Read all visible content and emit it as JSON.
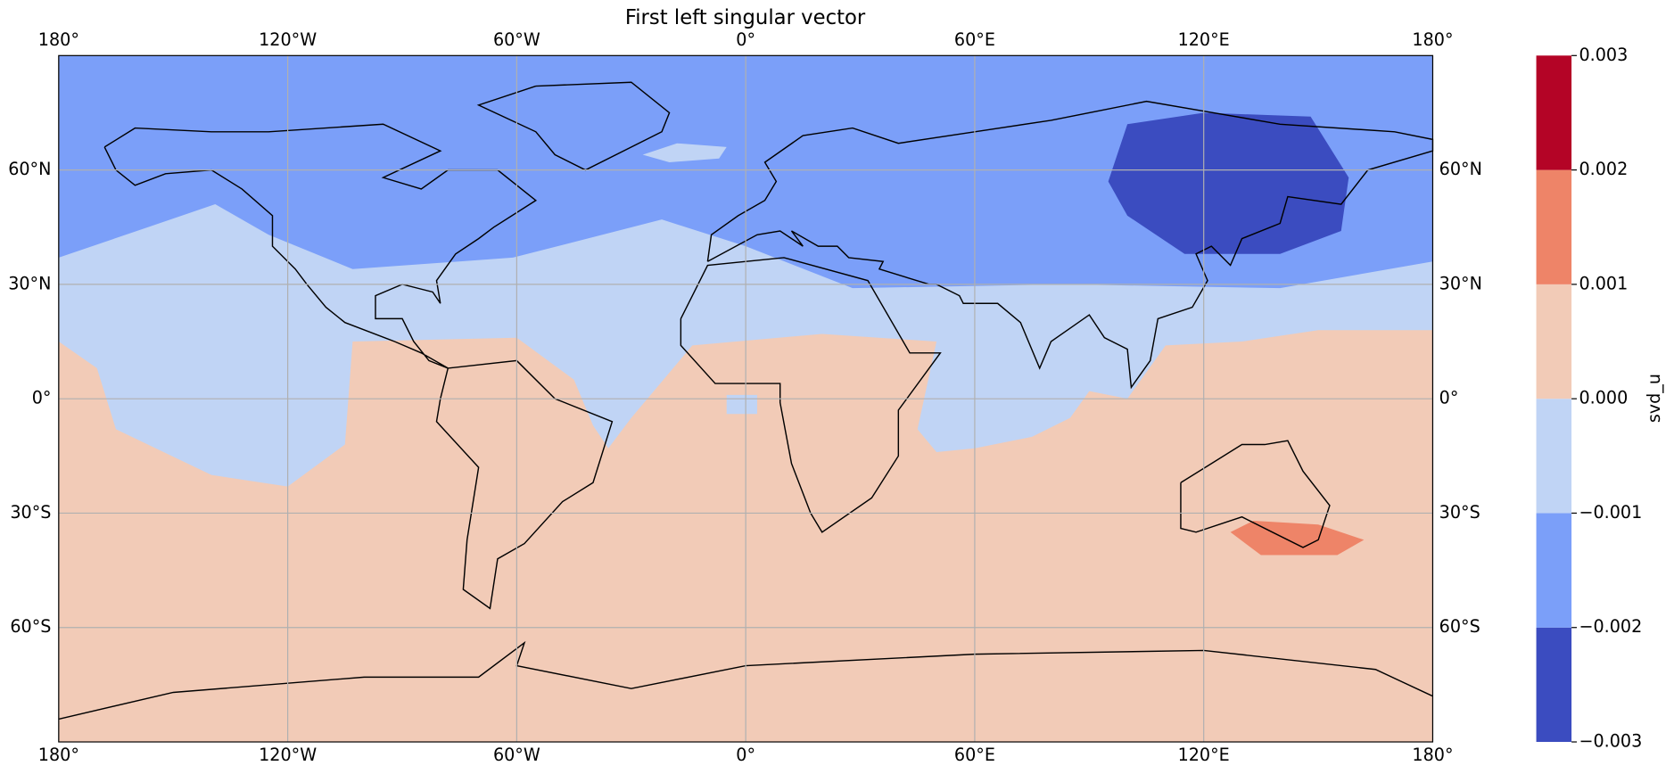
{
  "chart_data": {
    "type": "map",
    "title": "First left singular vector",
    "xlim": [
      -180,
      180
    ],
    "ylim": [
      -90,
      90
    ],
    "xticks": [
      {
        "value": -180,
        "label": "180°"
      },
      {
        "value": -120,
        "label": "120°W"
      },
      {
        "value": -60,
        "label": "60°W"
      },
      {
        "value": 0,
        "label": "0°"
      },
      {
        "value": 60,
        "label": "60°E"
      },
      {
        "value": 120,
        "label": "120°E"
      },
      {
        "value": 180,
        "label": "180°"
      }
    ],
    "yticks": [
      {
        "value": 60,
        "label": "60°N"
      },
      {
        "value": 30,
        "label": "30°N"
      },
      {
        "value": 0,
        "label": "0°"
      },
      {
        "value": -30,
        "label": "30°S"
      },
      {
        "value": -60,
        "label": "60°S"
      }
    ],
    "grid": true,
    "colorbar": {
      "label": "svd_u",
      "lim": [
        -0.003,
        0.003
      ],
      "ticks": [
        {
          "value": -0.003,
          "label": "−0.003"
        },
        {
          "value": -0.002,
          "label": "−0.002"
        },
        {
          "value": -0.001,
          "label": "−0.001"
        },
        {
          "value": 0,
          "label": "0.000"
        },
        0.001,
        0.002,
        0.003
      ],
      "colors": [
        "#3b4cc0",
        "#7b9ff9",
        "#c0d4f5",
        "#f2cbb7",
        "#ee8468",
        "#b40426"
      ]
    }
  }
}
